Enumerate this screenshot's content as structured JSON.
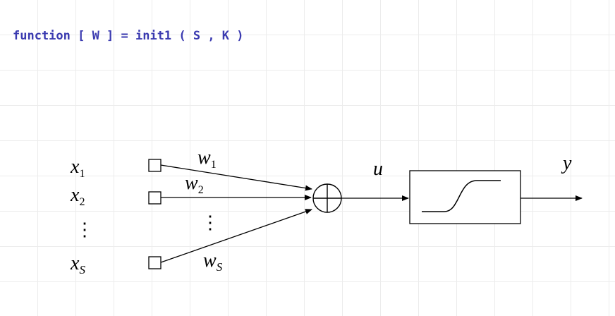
{
  "code": {
    "signature": "function [ W ] = init1 ( S , K )"
  },
  "diagram": {
    "inputs": [
      {
        "base": "x",
        "sub": "1"
      },
      {
        "base": "x",
        "sub": "2"
      },
      {
        "base": "x",
        "sub": "S"
      }
    ],
    "weights": [
      {
        "base": "w",
        "sub": "1"
      },
      {
        "base": "w",
        "sub": "2"
      },
      {
        "base": "w",
        "sub": "S"
      }
    ],
    "ellipsis": "⋮",
    "sum_label": "u",
    "output_label": "y",
    "icons": {
      "summation": "summation-circle-icon",
      "activation": "sigmoid-activation-icon"
    }
  }
}
